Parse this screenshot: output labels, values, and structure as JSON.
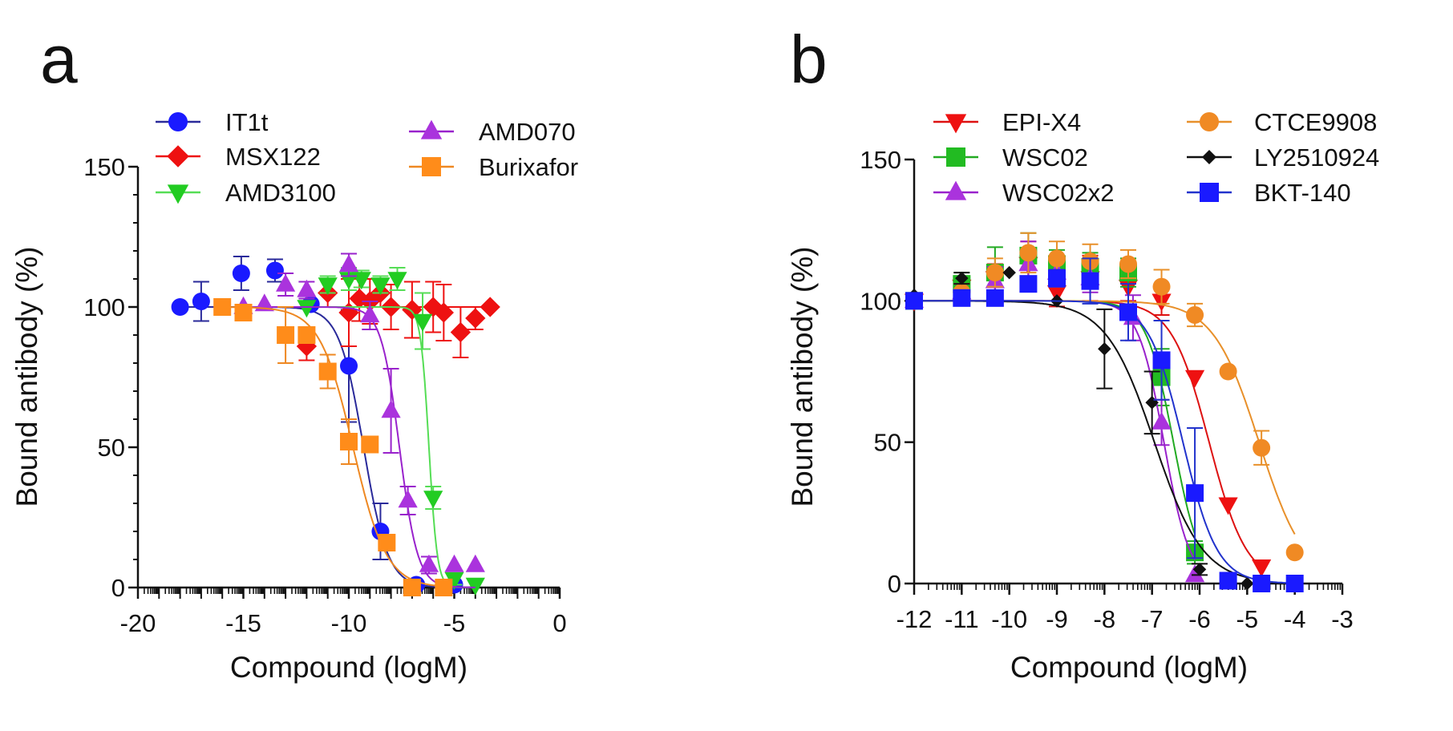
{
  "chart_data": [
    {
      "panel_label": "a",
      "type": "scatter",
      "xlabel": "Compound (logM)",
      "ylabel": "Bound antibody  (%)",
      "xlim": [
        -20,
        0
      ],
      "ylim": [
        0,
        150
      ],
      "xticks": [
        -20,
        -15,
        -10,
        -5,
        0
      ],
      "yticks": [
        0,
        50,
        100,
        150
      ],
      "grid": false,
      "legend": "top",
      "series": [
        {
          "name": "IT1t",
          "color": "#1a1aff",
          "line_color": "#2a2a9a",
          "marker": "circle",
          "x": [
            -18,
            -17,
            -15.1,
            -13.5,
            -11.8,
            -10,
            -8.5,
            -6.8,
            -5
          ],
          "y": [
            100,
            102,
            112,
            113,
            101,
            79,
            20,
            1,
            1
          ],
          "err": [
            0,
            7,
            6,
            4,
            0,
            20,
            10,
            0,
            0
          ],
          "fit": {
            "top": 100,
            "bottom": 0,
            "logIC50": -9.3,
            "hill": 0.75
          }
        },
        {
          "name": "MSX122",
          "color": "#ee1111",
          "line_color": "#ee1111",
          "marker": "diamond",
          "x": [
            -12,
            -11,
            -10,
            -9.5,
            -9,
            -8.5,
            -8,
            -7,
            -6,
            -5.5,
            -4.7,
            -4,
            -3.3
          ],
          "y": [
            86,
            105,
            98,
            103,
            102,
            105,
            100,
            99,
            100,
            98,
            91,
            96,
            100
          ],
          "err": [
            5,
            5,
            12,
            8,
            8,
            5,
            8,
            10,
            9,
            10,
            9,
            4,
            0
          ],
          "fit": {
            "top": 100,
            "bottom": 100,
            "logIC50": -8,
            "hill": 1
          }
        },
        {
          "name": "AMD3100",
          "color": "#22cc22",
          "line_color": "#55dd55",
          "marker": "triangle-down",
          "x": [
            -12,
            -11,
            -10,
            -9.4,
            -8.5,
            -7.7,
            -6.5,
            -6,
            -5,
            -4
          ],
          "y": [
            100,
            108,
            110,
            110,
            108,
            110,
            95,
            32,
            3,
            1
          ],
          "err": [
            0,
            3,
            4,
            3,
            3,
            4,
            10,
            4,
            2,
            0
          ],
          "fit": {
            "top": 100,
            "bottom": 0,
            "logIC50": -6.2,
            "hill": 2.2
          }
        },
        {
          "name": "AMD070",
          "color": "#aa33dd",
          "line_color": "#9922cc",
          "marker": "triangle-up",
          "x": [
            -15,
            -14,
            -13,
            -12,
            -10,
            -9,
            -8,
            -7.2,
            -6.2,
            -5,
            -4
          ],
          "y": [
            100,
            101,
            108,
            106,
            115,
            97,
            63,
            31,
            8,
            8,
            8
          ],
          "err": [
            0,
            0,
            4,
            3,
            4,
            5,
            15,
            5,
            3,
            0,
            0
          ],
          "fit": {
            "top": 100,
            "bottom": 0,
            "logIC50": -7.6,
            "hill": 1.0
          }
        },
        {
          "name": "Burixafor",
          "color": "#ff8c1a",
          "line_color": "#ee8822",
          "marker": "square",
          "x": [
            -16,
            -15,
            -13,
            -12,
            -11,
            -10,
            -9,
            -8.2,
            -7,
            -5.5
          ],
          "y": [
            100,
            98,
            90,
            90,
            77,
            52,
            51,
            16,
            0,
            0
          ],
          "err": [
            0,
            2,
            10,
            0,
            6,
            8,
            0,
            0,
            0,
            0
          ],
          "fit": {
            "top": 100,
            "bottom": 0,
            "logIC50": -9.8,
            "hill": 0.55
          }
        }
      ]
    },
    {
      "panel_label": "b",
      "type": "scatter",
      "xlabel": "Compound (logM)",
      "ylabel": "Bound antibody  (%)",
      "xlim": [
        -12,
        -3
      ],
      "ylim": [
        0,
        150
      ],
      "xticks": [
        -12,
        -11,
        -10,
        -9,
        -8,
        -7,
        -6,
        -5,
        -4,
        -3
      ],
      "yticks": [
        0,
        50,
        100,
        150
      ],
      "grid": false,
      "legend": "top",
      "series": [
        {
          "name": "EPI-X4",
          "color": "#ee1111",
          "line_color": "#dd1111",
          "marker": "triangle-down",
          "x": [
            -12,
            -11,
            -10.3,
            -9.6,
            -9,
            -8.3,
            -7.5,
            -6.8,
            -6.1,
            -5.4,
            -4.7
          ],
          "y": [
            100,
            105,
            108,
            113,
            103,
            108,
            105,
            100,
            73,
            28,
            6
          ],
          "err": [
            0,
            3,
            5,
            8,
            5,
            8,
            5,
            5,
            0,
            0,
            0
          ],
          "fit": {
            "top": 100,
            "bottom": 0,
            "logIC50": -5.8,
            "hill": 1.1
          }
        },
        {
          "name": "WSC02",
          "color": "#22bb22",
          "line_color": "#22aa22",
          "marker": "square",
          "x": [
            -12,
            -11,
            -10.3,
            -9.6,
            -9,
            -8.3,
            -7.5,
            -6.8,
            -6.1
          ],
          "y": [
            100,
            106,
            110,
            116,
            113,
            112,
            110,
            73,
            11
          ],
          "err": [
            0,
            4,
            9,
            8,
            5,
            5,
            5,
            10,
            4
          ],
          "fit": {
            "top": 100,
            "bottom": 0,
            "logIC50": -6.55,
            "hill": 1.5
          }
        },
        {
          "name": "WSC02x2",
          "color": "#aa33dd",
          "line_color": "#9922cc",
          "marker": "triangle-up",
          "x": [
            -12,
            -11,
            -10.3,
            -9.6,
            -9,
            -8.3,
            -7.4,
            -6.8,
            -6.1
          ],
          "y": [
            100,
            103,
            107,
            113,
            110,
            108,
            94,
            57,
            3
          ],
          "err": [
            0,
            3,
            5,
            8,
            5,
            5,
            8,
            8,
            0
          ],
          "fit": {
            "top": 100,
            "bottom": 0,
            "logIC50": -6.75,
            "hill": 1.6
          }
        },
        {
          "name": "CTCE9908",
          "color": "#f08a24",
          "line_color": "#e8902a",
          "marker": "circle",
          "x": [
            -12,
            -11,
            -10.3,
            -9.6,
            -9,
            -8.3,
            -7.5,
            -6.8,
            -6.1,
            -5.4,
            -4.7,
            -4
          ],
          "y": [
            100,
            103,
            110,
            117,
            115,
            114,
            113,
            105,
            95,
            75,
            48,
            11
          ],
          "err": [
            0,
            3,
            5,
            7,
            6,
            6,
            5,
            6,
            4,
            0,
            6,
            0
          ],
          "fit": {
            "top": 100,
            "bottom": 0,
            "logIC50": -4.75,
            "hill": 0.9
          }
        },
        {
          "name": "LY2510924",
          "color": "#111111",
          "line_color": "#111111",
          "marker": "small-diamond",
          "x": [
            -12,
            -11,
            -10,
            -9,
            -8,
            -7,
            -6,
            -5
          ],
          "y": [
            102,
            108,
            110,
            100,
            83,
            64,
            5,
            0
          ],
          "err": [
            0,
            2,
            0,
            0,
            14,
            11,
            2,
            0
          ],
          "fit": {
            "top": 100,
            "bottom": 0,
            "logIC50": -6.95,
            "hill": 0.85
          }
        },
        {
          "name": "BKT-140",
          "color": "#1a1aff",
          "line_color": "#2233cc",
          "marker": "square",
          "x": [
            -12,
            -11,
            -10.3,
            -9.6,
            -9,
            -8.3,
            -7.5,
            -6.8,
            -6.1,
            -5.4,
            -4.7,
            -4
          ],
          "y": [
            100,
            101,
            101,
            106,
            108,
            107,
            96,
            79,
            32,
            1,
            0,
            0
          ],
          "err": [
            0,
            2,
            0,
            0,
            3,
            8,
            10,
            14,
            23,
            0,
            0,
            0
          ],
          "fit": {
            "top": 100,
            "bottom": 0,
            "logIC50": -6.35,
            "hill": 1.2
          }
        }
      ]
    }
  ]
}
